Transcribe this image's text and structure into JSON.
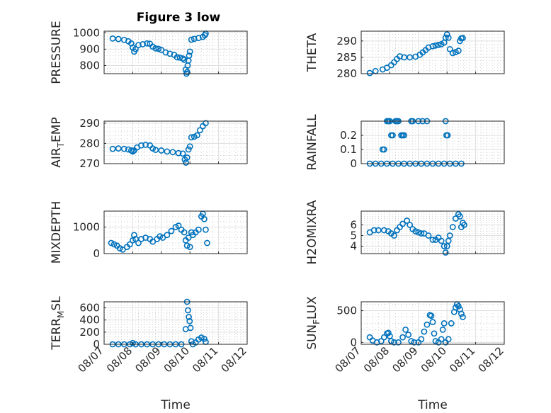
{
  "figure": {
    "title": "Figure 3 low",
    "marker_color": "#0072BD"
  },
  "chart_data": [
    {
      "type": "scatter",
      "id": "pressure",
      "ylabel": "PRESSURE",
      "xlabel": "",
      "ylim": [
        750,
        1010
      ],
      "yticks": [
        800,
        900,
        1000
      ],
      "xlim": [
        0,
        5
      ],
      "xticks": [
        0,
        1,
        2,
        3,
        4,
        5
      ],
      "xticklabels": [
        "08/07",
        "08/08",
        "08/09",
        "08/10",
        "08/11",
        "08/12"
      ],
      "show_xticklabels": false,
      "grid": true,
      "points": [
        [
          0.3,
          965
        ],
        [
          0.5,
          962
        ],
        [
          0.7,
          957
        ],
        [
          0.85,
          948
        ],
        [
          0.95,
          935
        ],
        [
          1.0,
          910
        ],
        [
          1.05,
          885
        ],
        [
          1.1,
          900
        ],
        [
          1.2,
          925
        ],
        [
          1.35,
          930
        ],
        [
          1.5,
          935
        ],
        [
          1.6,
          933
        ],
        [
          1.7,
          915
        ],
        [
          1.8,
          905
        ],
        [
          1.9,
          902
        ],
        [
          2.0,
          895
        ],
        [
          2.15,
          880
        ],
        [
          2.3,
          872
        ],
        [
          2.45,
          865
        ],
        [
          2.55,
          850
        ],
        [
          2.65,
          848
        ],
        [
          2.75,
          843
        ],
        [
          2.8,
          835
        ],
        [
          2.85,
          775
        ],
        [
          2.88,
          750
        ],
        [
          2.9,
          760
        ],
        [
          2.92,
          800
        ],
        [
          2.95,
          830
        ],
        [
          2.97,
          860
        ],
        [
          3.0,
          885
        ],
        [
          3.05,
          958
        ],
        [
          3.15,
          963
        ],
        [
          3.3,
          968
        ],
        [
          3.45,
          975
        ],
        [
          3.52,
          985
        ],
        [
          3.55,
          995
        ]
      ]
    },
    {
      "type": "scatter",
      "id": "theta",
      "ylabel": "THETA",
      "xlabel": "",
      "ylim": [
        280,
        293
      ],
      "yticks": [
        280,
        285,
        290
      ],
      "xlim": [
        0,
        5
      ],
      "xticks": [
        0,
        1,
        2,
        3,
        4,
        5
      ],
      "xticklabels": [
        "08/07",
        "08/08",
        "08/09",
        "08/10",
        "08/11",
        "08/12"
      ],
      "show_xticklabels": false,
      "grid": true,
      "points": [
        [
          0.3,
          280.2
        ],
        [
          0.5,
          280.8
        ],
        [
          0.75,
          281.3
        ],
        [
          0.9,
          281.8
        ],
        [
          1.05,
          282.6
        ],
        [
          1.15,
          283.5
        ],
        [
          1.25,
          284.5
        ],
        [
          1.35,
          285.3
        ],
        [
          1.5,
          285.0
        ],
        [
          1.7,
          285.0
        ],
        [
          1.9,
          285.2
        ],
        [
          2.05,
          285.8
        ],
        [
          2.15,
          286.5
        ],
        [
          2.25,
          287.2
        ],
        [
          2.35,
          288.0
        ],
        [
          2.5,
          288.4
        ],
        [
          2.6,
          288.6
        ],
        [
          2.7,
          288.8
        ],
        [
          2.8,
          289.0
        ],
        [
          2.9,
          289.5
        ],
        [
          2.95,
          291.0
        ],
        [
          3.0,
          292.0
        ],
        [
          3.05,
          291.0
        ],
        [
          3.1,
          287.5
        ],
        [
          3.2,
          286.3
        ],
        [
          3.3,
          286.6
        ],
        [
          3.4,
          287.0
        ],
        [
          3.45,
          290.0
        ],
        [
          3.5,
          290.8
        ],
        [
          3.55,
          290.9
        ]
      ]
    },
    {
      "type": "scatter",
      "id": "air_temp",
      "ylabel": "AIR_TEMP",
      "ylabel_main": "AIR",
      "ylabel_sub": "T",
      "ylabel_rest": "EMP",
      "xlabel": "",
      "ylim": [
        270,
        291
      ],
      "yticks": [
        270,
        280,
        290
      ],
      "xlim": [
        0,
        5
      ],
      "xticks": [
        0,
        1,
        2,
        3,
        4,
        5
      ],
      "xticklabels": [
        "08/07",
        "08/08",
        "08/09",
        "08/10",
        "08/11",
        "08/12"
      ],
      "show_xticklabels": false,
      "grid": true,
      "points": [
        [
          0.3,
          277.3
        ],
        [
          0.5,
          277.5
        ],
        [
          0.7,
          277.3
        ],
        [
          0.85,
          277.0
        ],
        [
          0.95,
          276.5
        ],
        [
          1.0,
          276.0
        ],
        [
          1.05,
          276.5
        ],
        [
          1.15,
          278.0
        ],
        [
          1.3,
          279.0
        ],
        [
          1.45,
          279.3
        ],
        [
          1.6,
          279.0
        ],
        [
          1.7,
          277.5
        ],
        [
          1.8,
          276.8
        ],
        [
          2.0,
          276.5
        ],
        [
          2.2,
          276.0
        ],
        [
          2.4,
          275.7
        ],
        [
          2.6,
          275.2
        ],
        [
          2.75,
          275.0
        ],
        [
          2.82,
          272.0
        ],
        [
          2.86,
          270.5
        ],
        [
          2.9,
          273.0
        ],
        [
          2.95,
          277.0
        ],
        [
          3.0,
          278.5
        ],
        [
          3.05,
          283.0
        ],
        [
          3.15,
          283.3
        ],
        [
          3.25,
          284.0
        ],
        [
          3.35,
          286.5
        ],
        [
          3.45,
          288.5
        ],
        [
          3.55,
          290.0
        ]
      ]
    },
    {
      "type": "scatter",
      "id": "rainfall",
      "ylabel": "RAINFALL",
      "xlabel": "",
      "ylim": [
        0,
        0.3
      ],
      "yticks": [
        0,
        0.1,
        0.2
      ],
      "xlim": [
        0,
        5
      ],
      "xticks": [
        0,
        1,
        2,
        3,
        4,
        5
      ],
      "xticklabels": [
        "08/07",
        "08/08",
        "08/09",
        "08/10",
        "08/11",
        "08/12"
      ],
      "show_xticklabels": false,
      "grid": true,
      "points": [
        [
          0.3,
          0
        ],
        [
          0.5,
          0
        ],
        [
          0.7,
          0
        ],
        [
          0.9,
          0
        ],
        [
          1.1,
          0
        ],
        [
          1.3,
          0
        ],
        [
          1.5,
          0
        ],
        [
          1.7,
          0
        ],
        [
          1.9,
          0
        ],
        [
          2.1,
          0
        ],
        [
          2.3,
          0
        ],
        [
          2.5,
          0
        ],
        [
          2.7,
          0
        ],
        [
          2.9,
          0
        ],
        [
          3.1,
          0
        ],
        [
          3.3,
          0
        ],
        [
          3.5,
          0
        ],
        [
          0.75,
          0.1
        ],
        [
          0.8,
          0.1
        ],
        [
          0.9,
          0.3
        ],
        [
          0.95,
          0.3
        ],
        [
          1.0,
          0.3
        ],
        [
          1.05,
          0.2
        ],
        [
          1.1,
          0.2
        ],
        [
          1.2,
          0.3
        ],
        [
          1.25,
          0.3
        ],
        [
          1.3,
          0.3
        ],
        [
          1.4,
          0.2
        ],
        [
          1.45,
          0.2
        ],
        [
          1.5,
          0.2
        ],
        [
          1.75,
          0.3
        ],
        [
          1.8,
          0.3
        ],
        [
          2.0,
          0.3
        ],
        [
          2.15,
          0.3
        ],
        [
          2.3,
          0.3
        ],
        [
          2.95,
          0.3
        ],
        [
          2.98,
          0.2
        ],
        [
          3.02,
          0.2
        ]
      ]
    },
    {
      "type": "scatter",
      "id": "mixdepth",
      "ylabel": "MIXDEPTH",
      "xlabel": "",
      "ylim": [
        0,
        1600
      ],
      "yticks": [
        0,
        1000
      ],
      "xlim": [
        0,
        5
      ],
      "xticks": [
        0,
        1,
        2,
        3,
        4,
        5
      ],
      "xticklabels": [
        "08/07",
        "08/08",
        "08/09",
        "08/10",
        "08/11",
        "08/12"
      ],
      "show_xticklabels": false,
      "grid": true,
      "points": [
        [
          0.25,
          400
        ],
        [
          0.35,
          350
        ],
        [
          0.45,
          300
        ],
        [
          0.55,
          200
        ],
        [
          0.65,
          150
        ],
        [
          0.8,
          250
        ],
        [
          0.9,
          350
        ],
        [
          1.0,
          500
        ],
        [
          1.05,
          700
        ],
        [
          1.1,
          550
        ],
        [
          1.2,
          400
        ],
        [
          1.3,
          550
        ],
        [
          1.45,
          600
        ],
        [
          1.6,
          550
        ],
        [
          1.7,
          450
        ],
        [
          1.85,
          550
        ],
        [
          1.95,
          650
        ],
        [
          2.05,
          600
        ],
        [
          2.2,
          700
        ],
        [
          2.35,
          850
        ],
        [
          2.5,
          1000
        ],
        [
          2.6,
          1050
        ],
        [
          2.7,
          900
        ],
        [
          2.8,
          800
        ],
        [
          2.85,
          500
        ],
        [
          2.9,
          300
        ],
        [
          2.95,
          600
        ],
        [
          3.0,
          250
        ],
        [
          3.05,
          800
        ],
        [
          3.1,
          700
        ],
        [
          3.2,
          800
        ],
        [
          3.3,
          900
        ],
        [
          3.4,
          1400
        ],
        [
          3.45,
          1500
        ],
        [
          3.5,
          1300
        ],
        [
          3.55,
          900
        ],
        [
          3.6,
          400
        ]
      ]
    },
    {
      "type": "scatter",
      "id": "h2omixra",
      "ylabel": "H2OMIXRA",
      "xlabel": "",
      "ylim": [
        3.3,
        7.3
      ],
      "yticks": [
        4,
        5,
        6
      ],
      "xlim": [
        0,
        5
      ],
      "xticks": [
        0,
        1,
        2,
        3,
        4,
        5
      ],
      "xticklabels": [
        "08/07",
        "08/08",
        "08/09",
        "08/10",
        "08/11",
        "08/12"
      ],
      "show_xticklabels": false,
      "grid": true,
      "points": [
        [
          0.3,
          5.3
        ],
        [
          0.45,
          5.5
        ],
        [
          0.6,
          5.5
        ],
        [
          0.8,
          5.5
        ],
        [
          0.95,
          5.4
        ],
        [
          1.05,
          5.2
        ],
        [
          1.15,
          5.0
        ],
        [
          1.25,
          5.5
        ],
        [
          1.35,
          5.8
        ],
        [
          1.45,
          6.1
        ],
        [
          1.6,
          6.4
        ],
        [
          1.7,
          6.0
        ],
        [
          1.8,
          5.6
        ],
        [
          1.9,
          5.4
        ],
        [
          2.0,
          5.3
        ],
        [
          2.1,
          5.2
        ],
        [
          2.2,
          5.2
        ],
        [
          2.35,
          5.0
        ],
        [
          2.5,
          4.6
        ],
        [
          2.6,
          4.6
        ],
        [
          2.7,
          4.8
        ],
        [
          2.8,
          4.5
        ],
        [
          2.9,
          4.0
        ],
        [
          2.95,
          3.4
        ],
        [
          3.0,
          4.0
        ],
        [
          3.05,
          4.5
        ],
        [
          3.1,
          5.0
        ],
        [
          3.2,
          5.8
        ],
        [
          3.3,
          6.6
        ],
        [
          3.4,
          7.0
        ],
        [
          3.45,
          6.8
        ],
        [
          3.5,
          5.8
        ],
        [
          3.55,
          6.2
        ],
        [
          3.6,
          6.0
        ]
      ]
    },
    {
      "type": "scatter",
      "id": "terr_msl",
      "ylabel": "TERR_MSL",
      "ylabel_main": "TERR",
      "ylabel_sub": "M",
      "ylabel_rest": "SL",
      "xlabel": "Time",
      "ylim": [
        0,
        700
      ],
      "yticks": [
        0,
        200,
        400,
        600
      ],
      "xlim": [
        0,
        5
      ],
      "xticks": [
        0,
        1,
        2,
        3,
        4,
        5
      ],
      "xticklabels": [
        "08/07",
        "08/08",
        "08/09",
        "08/10",
        "08/11",
        "08/12"
      ],
      "show_xticklabels": true,
      "grid": true,
      "points": [
        [
          0.3,
          0
        ],
        [
          0.5,
          0
        ],
        [
          0.7,
          0
        ],
        [
          0.9,
          0
        ],
        [
          1.0,
          20
        ],
        [
          1.1,
          0
        ],
        [
          1.3,
          0
        ],
        [
          1.5,
          0
        ],
        [
          1.7,
          0
        ],
        [
          1.9,
          0
        ],
        [
          2.1,
          0
        ],
        [
          2.3,
          0
        ],
        [
          2.5,
          0
        ],
        [
          2.7,
          0
        ],
        [
          2.85,
          250
        ],
        [
          2.9,
          700
        ],
        [
          2.93,
          560
        ],
        [
          2.96,
          450
        ],
        [
          2.99,
          380
        ],
        [
          3.02,
          270
        ],
        [
          3.05,
          50
        ],
        [
          3.1,
          0
        ],
        [
          3.2,
          30
        ],
        [
          3.3,
          80
        ],
        [
          3.4,
          110
        ],
        [
          3.5,
          90
        ],
        [
          3.55,
          40
        ]
      ]
    },
    {
      "type": "scatter",
      "id": "sun_flux",
      "ylabel": "SUN_FLUX",
      "ylabel_main": "SUN",
      "ylabel_sub": "F",
      "ylabel_rest": "LUX",
      "xlabel": "Time",
      "ylim": [
        -30,
        640
      ],
      "yticks": [
        0,
        500
      ],
      "xlim": [
        0,
        5
      ],
      "xticks": [
        0,
        1,
        2,
        3,
        4,
        5
      ],
      "xticklabels": [
        "08/07",
        "08/08",
        "08/09",
        "08/10",
        "08/11",
        "08/12"
      ],
      "show_xticklabels": true,
      "grid": true,
      "points": [
        [
          0.3,
          80
        ],
        [
          0.4,
          30
        ],
        [
          0.55,
          0
        ],
        [
          0.7,
          20
        ],
        [
          0.8,
          80
        ],
        [
          0.9,
          140
        ],
        [
          0.95,
          150
        ],
        [
          1.0,
          100
        ],
        [
          1.05,
          20
        ],
        [
          1.15,
          0
        ],
        [
          1.3,
          0
        ],
        [
          1.45,
          80
        ],
        [
          1.55,
          200
        ],
        [
          1.65,
          120
        ],
        [
          1.75,
          20
        ],
        [
          1.85,
          0
        ],
        [
          2.0,
          0
        ],
        [
          2.1,
          50
        ],
        [
          2.2,
          170
        ],
        [
          2.3,
          280
        ],
        [
          2.4,
          430
        ],
        [
          2.45,
          420
        ],
        [
          2.5,
          320
        ],
        [
          2.55,
          140
        ],
        [
          2.6,
          20
        ],
        [
          2.7,
          0
        ],
        [
          2.8,
          50
        ],
        [
          2.85,
          200
        ],
        [
          2.9,
          300
        ],
        [
          2.95,
          0
        ],
        [
          3.05,
          50
        ],
        [
          3.15,
          300
        ],
        [
          3.25,
          480
        ],
        [
          3.3,
          550
        ],
        [
          3.35,
          600
        ],
        [
          3.4,
          570
        ],
        [
          3.45,
          520
        ],
        [
          3.5,
          450
        ],
        [
          3.55,
          400
        ]
      ]
    }
  ]
}
